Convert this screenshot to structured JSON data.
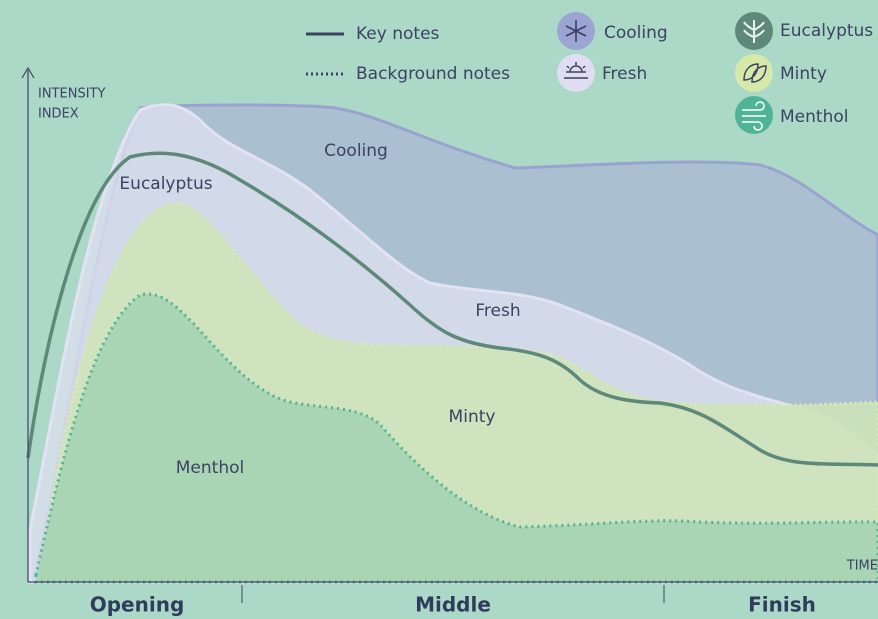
{
  "legend": {
    "line_styles": [
      "Key notes",
      "Background notes"
    ],
    "notes": [
      "Cooling",
      "Fresh",
      "Eucalyptus",
      "Minty",
      "Menthol"
    ]
  },
  "axis": {
    "y_label": [
      "INTENSITY",
      "INDEX"
    ],
    "x_label": "TIME"
  },
  "areas": [
    "Cooling",
    "Fresh",
    "Eucalyptus",
    "Minty",
    "Menthol"
  ],
  "phases": [
    "Opening",
    "Middle",
    "Finish"
  ]
}
